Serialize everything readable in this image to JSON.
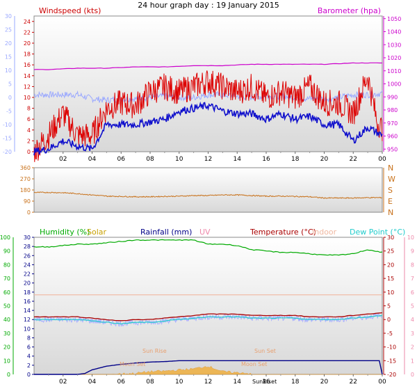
{
  "title": "24 hour graph day : 19 January 2015",
  "colors": {
    "wind": "#dd0000",
    "gust_fill": "#ff0000",
    "wind_avg": "#1010cc",
    "baro": "#cc00cc",
    "temp_light": "#9aa8ff",
    "direction": "#c87018",
    "humidity": "#00aa00",
    "solar": "#c8a000",
    "rain": "#000088",
    "uv": "#ee88aa",
    "temperature": "#aa0000",
    "indoor": "#f0b8a0",
    "dewpoint": "#22cccc",
    "chart_bg_top": "#ffffff",
    "chart_bg_bottom": "#dcdcdc"
  },
  "chart_data": [
    {
      "type": "line",
      "panel": "wind",
      "title": "24 hour graph day : 19 January 2015",
      "left_label": "Windspeed (kts)",
      "right_label": "Barometer (hpa)",
      "left_ticks": [
        "24",
        "22",
        "20",
        "18",
        "16",
        "14",
        "12",
        "10",
        "8",
        "6",
        "4",
        "2",
        "0"
      ],
      "right_ticks": [
        "1050",
        "1040",
        "1030",
        "1020",
        "1010",
        "1000",
        "990",
        "980",
        "970",
        "960",
        "950"
      ],
      "outer_left_ticks": [
        "30",
        "25",
        "20",
        "15",
        "10",
        "5",
        "0",
        "-5",
        "-10",
        "-15",
        "-20"
      ],
      "x_ticks": [
        "02",
        "04",
        "06",
        "08",
        "10",
        "12",
        "14",
        "16",
        "18",
        "20",
        "22",
        "00"
      ],
      "ylim": [
        0,
        25
      ],
      "y2lim": [
        948,
        1052
      ],
      "series": [
        {
          "name": "Windspeed (kts)",
          "x": [
            0,
            1,
            2,
            3,
            4,
            5,
            6,
            7,
            8,
            9,
            10,
            11,
            12,
            13,
            14,
            15,
            16,
            17,
            18,
            19,
            20,
            21,
            22,
            23,
            24
          ],
          "values": [
            0,
            0.5,
            2,
            1,
            0.5,
            5,
            5,
            5,
            5.5,
            6,
            7.5,
            8,
            8.5,
            7.5,
            7,
            7,
            6,
            7,
            6,
            6.5,
            5,
            5,
            2,
            4.5,
            3
          ]
        },
        {
          "name": "Barometer (hpa)",
          "x": [
            0,
            1,
            2,
            3,
            4,
            5,
            6,
            7,
            8,
            9,
            10,
            11,
            12,
            13,
            14,
            15,
            16,
            17,
            18,
            19,
            20,
            21,
            22,
            23,
            24
          ],
          "values": [
            1011,
            1011,
            1011.5,
            1012,
            1012,
            1012,
            1012.5,
            1013,
            1013,
            1013,
            1013.5,
            1014,
            1014,
            1014,
            1014.5,
            1015,
            1015,
            1015,
            1015,
            1015,
            1015,
            1015.5,
            1016,
            1016,
            1016
          ]
        },
        {
          "name": "Gust (kts)",
          "x": [
            0,
            1,
            2,
            3,
            4,
            5,
            6,
            7,
            8,
            9,
            10,
            11,
            12,
            13,
            14,
            15,
            16,
            17,
            18,
            19,
            20,
            21,
            22,
            23,
            23.6,
            24
          ],
          "values": [
            0,
            3,
            7,
            3,
            3,
            8,
            9,
            8.5,
            11,
            12,
            11,
            12,
            13,
            12,
            11,
            12,
            10,
            11,
            10,
            12,
            9,
            9,
            7,
            14,
            6,
            4
          ]
        },
        {
          "name": "Temperature (°C)",
          "x": [
            0,
            1,
            2,
            3,
            4,
            5,
            6,
            7,
            8,
            9,
            10,
            11,
            12,
            13,
            14,
            15,
            16,
            17,
            18,
            19,
            20,
            21,
            22,
            23,
            24
          ],
          "values": [
            1,
            1,
            1,
            1,
            -0.5,
            -1,
            -0.5,
            -0.5,
            0,
            0.5,
            0,
            0,
            1,
            1,
            0.5,
            0,
            0.5,
            0.5,
            0,
            -0.5,
            -0.5,
            0,
            1,
            1,
            1.5
          ]
        }
      ]
    },
    {
      "type": "line",
      "panel": "direction",
      "y_ticks": [
        "360",
        "270",
        "180",
        "90",
        "0"
      ],
      "compass": [
        "N",
        "W",
        "S",
        "E",
        "N"
      ],
      "x_ticks": [
        "02",
        "04",
        "06",
        "08",
        "10",
        "12",
        "14",
        "16",
        "18",
        "20",
        "22",
        "00"
      ],
      "ylim": [
        0,
        360
      ],
      "series": [
        {
          "name": "Wind direction",
          "x": [
            0,
            1,
            2,
            3,
            4,
            5,
            6,
            7,
            8,
            9,
            10,
            11,
            12,
            13,
            14,
            15,
            16,
            17,
            18,
            19,
            20,
            21,
            22,
            23,
            24
          ],
          "values": [
            160,
            160,
            158,
            150,
            140,
            130,
            128,
            125,
            125,
            128,
            130,
            135,
            135,
            140,
            140,
            135,
            130,
            130,
            128,
            125,
            115,
            115,
            115,
            118,
            118
          ]
        }
      ]
    },
    {
      "type": "line",
      "panel": "temperature",
      "legend": [
        "Humidity (%)",
        "Solar",
        "Rainfall (mm)",
        "UV",
        "Temperature (°C)",
        "Indoor",
        "Dew Point (°C)"
      ],
      "left_ticks": [
        "100",
        "90",
        "80",
        "70",
        "60",
        "50",
        "40",
        "30",
        "20",
        "10",
        "0"
      ],
      "inner_left_ticks": [
        "30",
        "28",
        "26",
        "24",
        "22",
        "20",
        "18",
        "16",
        "14",
        "12",
        "10",
        "8",
        "6",
        "4",
        "2",
        "0"
      ],
      "right_ticks": [
        "30",
        "25",
        "20",
        "15",
        "10",
        "5",
        "0",
        "-5",
        "-10",
        "-15",
        "-20"
      ],
      "outer_right_ticks": [
        "10",
        "9",
        "8",
        "7",
        "6",
        "5",
        "4",
        "3",
        "2",
        "1",
        "0"
      ],
      "x_ticks": [
        "02",
        "04",
        "06",
        "08",
        "10",
        "12",
        "14",
        "16",
        "18",
        "20",
        "22",
        "00"
      ],
      "ylim": [
        0,
        100
      ],
      "series": [
        {
          "name": "Humidity (%)",
          "x": [
            0,
            1,
            2,
            3,
            4,
            5,
            6,
            7,
            8,
            9,
            10,
            11,
            12,
            13,
            14,
            15,
            16,
            17,
            18,
            19,
            20,
            21,
            22,
            23,
            24
          ],
          "values": [
            93,
            93,
            94,
            95,
            95,
            96,
            97,
            98,
            98,
            98,
            98,
            98,
            95,
            95,
            94,
            91,
            90,
            89,
            89,
            88,
            87,
            87,
            88,
            91,
            89
          ]
        },
        {
          "name": "Temperature (°C)",
          "x": [
            0,
            1,
            2,
            3,
            4,
            5,
            6,
            7,
            8,
            9,
            10,
            11,
            12,
            13,
            14,
            15,
            16,
            17,
            18,
            19,
            20,
            21,
            22,
            23,
            24
          ],
          "values": [
            1,
            1,
            1,
            1,
            0.5,
            0,
            -0.5,
            0,
            0,
            0.5,
            1,
            1.5,
            2,
            2,
            2,
            1.5,
            1.5,
            1.5,
            1.5,
            1,
            1,
            1,
            1.5,
            2,
            2.5
          ]
        },
        {
          "name": "Dew Point (°C)",
          "x": [
            0,
            1,
            2,
            3,
            4,
            5,
            6,
            7,
            8,
            9,
            10,
            11,
            12,
            13,
            14,
            15,
            16,
            17,
            18,
            19,
            20,
            21,
            22,
            23,
            24
          ],
          "values": [
            0,
            0,
            0,
            0,
            -0.5,
            -1,
            -1.5,
            -1,
            -1,
            -0.5,
            0,
            0.5,
            1,
            1,
            1,
            0.5,
            0.5,
            0.5,
            0.5,
            0,
            0,
            0,
            0.5,
            1,
            1.5
          ]
        },
        {
          "name": "Indoor",
          "x": [
            0,
            24
          ],
          "values": [
            9,
            9
          ]
        },
        {
          "name": "Rainfall (mm)",
          "x": [
            0,
            1,
            2,
            3,
            3.5,
            4,
            5,
            6,
            7,
            8,
            9,
            10,
            11,
            12,
            13,
            14,
            15,
            16,
            17,
            18,
            19,
            20,
            21,
            22,
            23,
            23.8,
            24
          ],
          "values": [
            0,
            0,
            0,
            0,
            0.2,
            1,
            1.8,
            2.2,
            2.5,
            2.7,
            2.8,
            3,
            3,
            3,
            3,
            3,
            3,
            3,
            3,
            3,
            3,
            3,
            3,
            3,
            3,
            3,
            0
          ]
        },
        {
          "name": "Solar",
          "x": [
            0,
            5,
            6,
            7,
            8,
            9,
            10,
            11,
            12,
            13,
            14,
            14.5,
            15,
            24
          ],
          "values": [
            0,
            0,
            0.1,
            0.2,
            0.5,
            0.6,
            0.8,
            1,
            1.5,
            0.5,
            0.3,
            0.3,
            0,
            0
          ]
        }
      ],
      "annotations": [
        "Sun Rise",
        "Sun Set",
        "Moon Set",
        "Moon Set",
        "SunRiset"
      ]
    }
  ]
}
